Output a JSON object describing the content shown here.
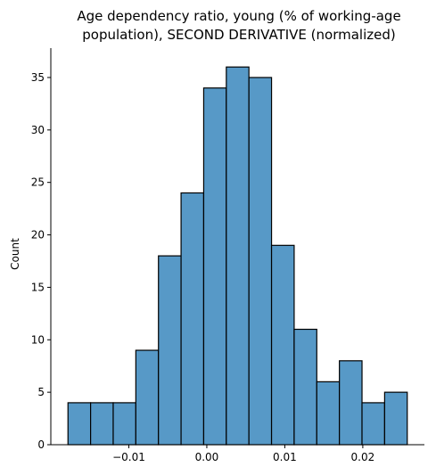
{
  "chart_data": {
    "type": "bar",
    "title_lines": [
      "Age dependency ratio, young (% of working-age",
      "population), SECOND DERIVATIVE (normalized)"
    ],
    "xlabel": "",
    "ylabel": "Count",
    "bin_edges": [
      -0.0178,
      -0.0149,
      -0.012,
      -0.0091,
      -0.0062,
      -0.0033,
      -0.0004,
      0.0025,
      0.0054,
      0.0083,
      0.0112,
      0.0141,
      0.017,
      0.0199,
      0.0228,
      0.0257
    ],
    "values": [
      4,
      4,
      4,
      9,
      18,
      24,
      34,
      36,
      35,
      19,
      11,
      6,
      8,
      4,
      5
    ],
    "xlim": [
      -0.02,
      0.0279
    ],
    "ylim": [
      0,
      37.8
    ],
    "xticks": [
      -0.01,
      0.0,
      0.01,
      0.02
    ],
    "xtick_labels": [
      "−0.01",
      "0.00",
      "0.01",
      "0.02"
    ],
    "yticks": [
      0,
      5,
      10,
      15,
      20,
      25,
      30,
      35
    ],
    "ytick_labels": [
      "0",
      "5",
      "10",
      "15",
      "20",
      "25",
      "30",
      "35"
    ],
    "grid": false,
    "bar_color": "#5799c7",
    "edge_color": "#000000"
  }
}
